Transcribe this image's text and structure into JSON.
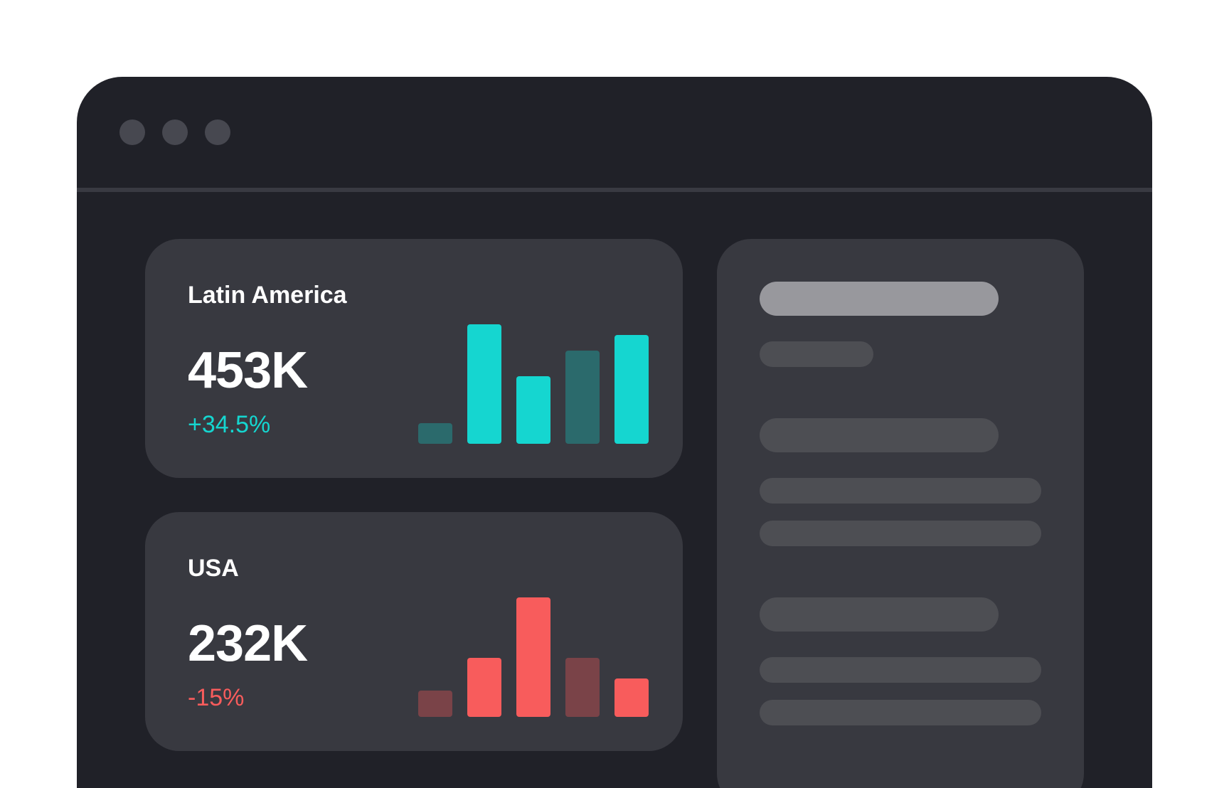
{
  "colors": {
    "page_bg": "#ffffff",
    "window_bg": "#202128",
    "card_bg": "#383940",
    "positive": "#15d6d0",
    "positive_muted": "#2b6a6c",
    "negative": "#f85c5c",
    "negative_muted": "#7a4348",
    "skeleton_light": "#98989d",
    "skeleton_dark": "#4d4e53"
  },
  "cards": [
    {
      "region": "Latin America",
      "value": "453K",
      "change": "+34.5%",
      "trend": "positive",
      "chart_data": {
        "type": "bar",
        "values": [
          2,
          11.5,
          6.5,
          9,
          10.5
        ],
        "highlight": [
          false,
          true,
          true,
          false,
          true
        ],
        "ylim": [
          0,
          11.5
        ]
      }
    },
    {
      "region": "USA",
      "value": "232K",
      "change": "-15%",
      "trend": "negative",
      "chart_data": {
        "type": "bar",
        "values": [
          2.5,
          5.7,
          11.5,
          5.7,
          3.7
        ],
        "highlight": [
          false,
          true,
          true,
          false,
          true
        ],
        "ylim": [
          0,
          11.5
        ]
      }
    }
  ]
}
